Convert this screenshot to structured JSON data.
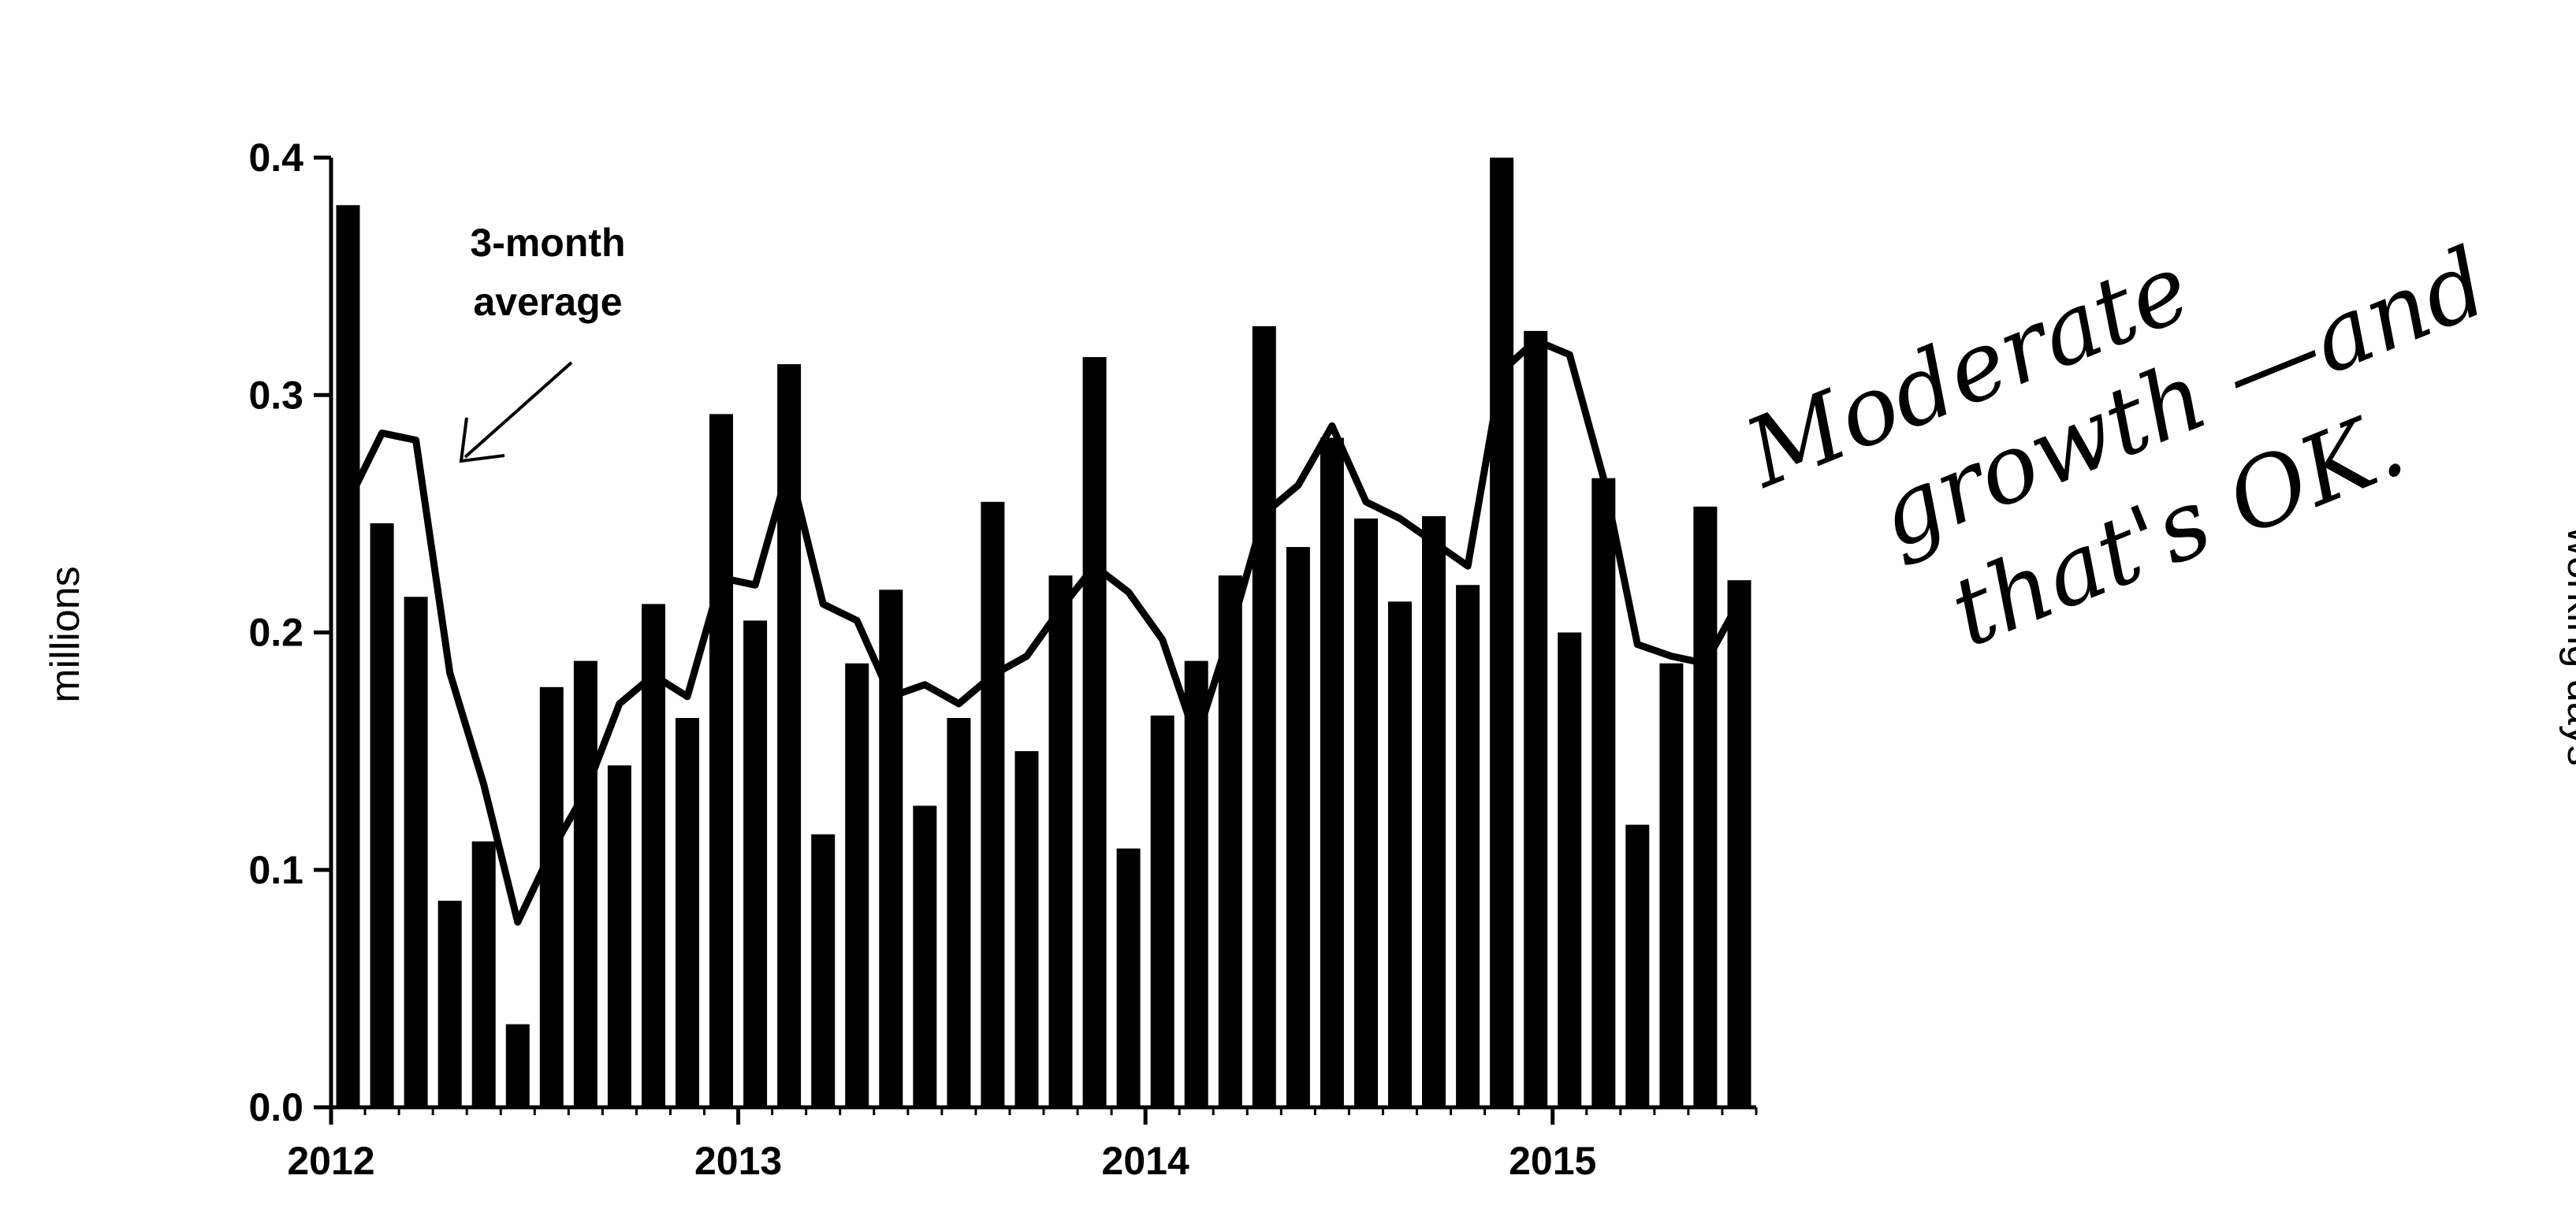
{
  "chart_data": {
    "type": "bar",
    "title": "",
    "ylabel": "millions",
    "y2label": "working days",
    "ylim": [
      0,
      0.4
    ],
    "yticks": [
      "0.0",
      "0.1",
      "0.2",
      "0.3",
      "0.4"
    ],
    "xticks": [
      "2012",
      "2013",
      "2014",
      "2015"
    ],
    "annotation": "3-month average",
    "annotation_lines": [
      "3-month",
      "average"
    ],
    "handwritten_note": "Moderate growth — and that's OK.",
    "handwritten_lines": [
      "Moderate",
      "growth —and",
      "that's OK."
    ],
    "series": [
      {
        "type": "bar",
        "values": [
          0.38,
          0.246,
          0.215,
          0.087,
          0.112,
          0.035,
          0.177,
          0.188,
          0.144,
          0.212,
          0.164,
          0.292,
          0.205,
          0.313,
          0.115,
          0.187,
          0.218,
          0.127,
          0.164,
          0.255,
          0.15,
          0.224,
          0.316,
          0.109,
          0.165,
          0.188,
          0.224,
          0.329,
          0.236,
          0.282,
          0.248,
          0.213,
          0.249,
          0.22,
          0.4,
          0.327,
          0.2,
          0.265,
          0.119,
          0.187,
          0.253,
          0.222
        ]
      },
      {
        "type": "line",
        "values": [
          0.255,
          0.284,
          0.281,
          0.183,
          0.136,
          0.078,
          0.108,
          0.133,
          0.17,
          0.182,
          0.173,
          0.223,
          0.22,
          0.27,
          0.212,
          0.205,
          0.173,
          0.178,
          0.17,
          0.182,
          0.19,
          0.21,
          0.228,
          0.217,
          0.197,
          0.155,
          0.2,
          0.25,
          0.262,
          0.287,
          0.255,
          0.248,
          0.238,
          0.228,
          0.31,
          0.323,
          0.317,
          0.265,
          0.195,
          0.19,
          0.187,
          0.213
        ]
      }
    ]
  }
}
